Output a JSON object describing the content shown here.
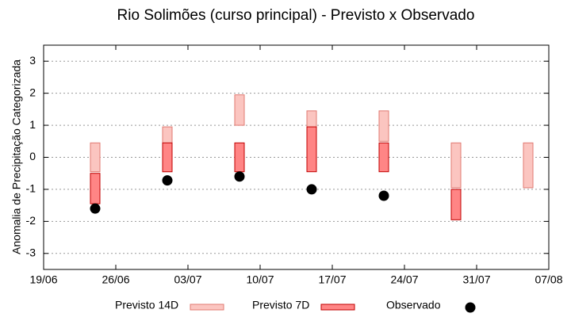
{
  "chart_data": {
    "type": "range",
    "title": "Rio Solimões (curso principal) - Previsto x Observado",
    "y_label": "Anomalia de Precipitação Categorizada",
    "x": [
      "24/06",
      "01/07",
      "08/07",
      "15/07",
      "22/07",
      "29/07",
      "05/08"
    ],
    "xlim": [
      "19/06",
      "07/08"
    ],
    "xticks": [
      "19/06",
      "26/06",
      "03/07",
      "10/07",
      "17/07",
      "24/07",
      "31/07",
      "07/08"
    ],
    "ylim": [
      -3.5,
      3.5
    ],
    "yticks": [
      -3,
      -2,
      -1,
      0,
      1,
      2,
      3
    ],
    "grid": true,
    "legend": "bottom",
    "series": [
      {
        "name": "Previsto 14D",
        "color": "#fbc5c0",
        "edge": "#e07a72",
        "low": [
          -0.45,
          -0.45,
          1,
          0.5,
          0.5,
          -0.95,
          -0.95
        ],
        "high": [
          0.45,
          0.95,
          1.95,
          1.45,
          1.45,
          0.45,
          0.45
        ]
      },
      {
        "name": "Previsto 7D",
        "color": "#ff8585",
        "edge": "#c00000",
        "low": [
          -1.45,
          -0.45,
          -0.45,
          -0.45,
          -0.45,
          -1.95,
          null
        ],
        "high": [
          -0.5,
          0.45,
          0.45,
          0.95,
          0.45,
          -1,
          null
        ]
      },
      {
        "name": "Observado",
        "color": "#000000",
        "values": [
          -1.6,
          -0.72,
          -0.6,
          -1.0,
          -1.2,
          null,
          null
        ]
      }
    ]
  }
}
